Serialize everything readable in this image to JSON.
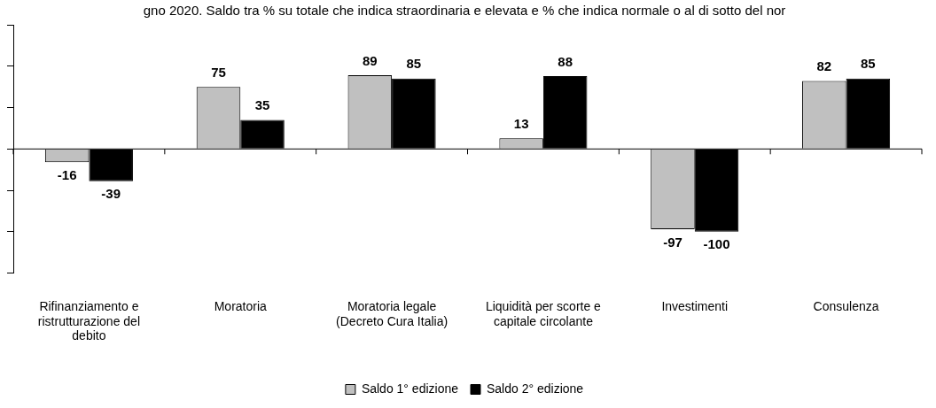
{
  "chart_data": {
    "type": "bar",
    "title": "gno 2020. Saldo tra % su totale che indica straordinaria e elevata e % che indica normale o al di sotto del nor",
    "categories": [
      "Rifinanziamento e ristrutturazione del debito",
      "Moratoria",
      "Moratoria legale (Decreto Cura Italia)",
      "Liquidità per scorte e capitale circolante",
      "Investimenti",
      "Consulenza"
    ],
    "series": [
      {
        "name": "Saldo 1° edizione",
        "color": "#c0c0c0",
        "values": [
          -16,
          75,
          89,
          13,
          -97,
          82
        ]
      },
      {
        "name": "Saldo 2° edizione",
        "color": "#000000",
        "values": [
          -39,
          35,
          85,
          88,
          -100,
          85
        ]
      }
    ],
    "tick_labels": "x",
    "legend": "bottom",
    "data_labels": true
  }
}
